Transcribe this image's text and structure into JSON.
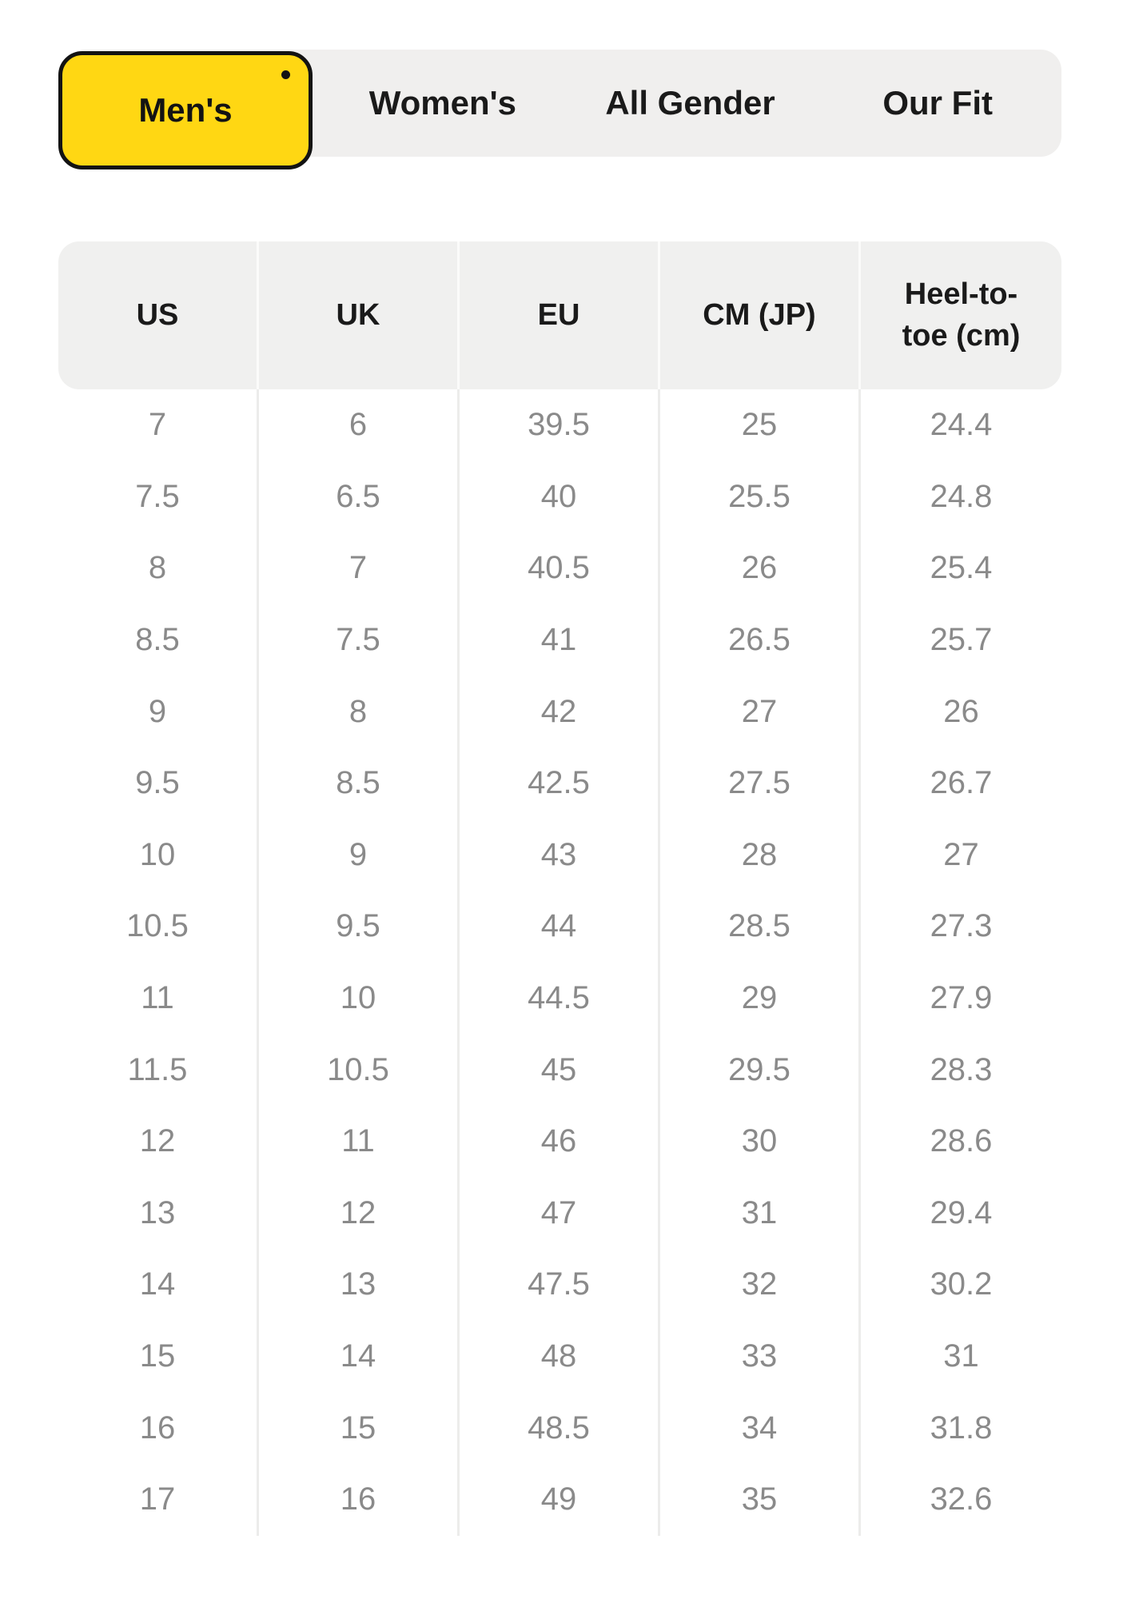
{
  "tabs": {
    "items": [
      {
        "label": "Men's",
        "selected": true
      },
      {
        "label": "Women's",
        "selected": false
      },
      {
        "label": "All Gender",
        "selected": false
      },
      {
        "label": "Our Fit",
        "selected": false
      }
    ]
  },
  "colors": {
    "accent_yellow": "#ffd713",
    "tab_pill_bg": "#f0efee",
    "header_bg": "#f0f0ef",
    "tab_text": "#1a1a1a",
    "body_text": "#8a8a8a",
    "divider": "#ececeb",
    "selected_border": "#131313"
  },
  "table": {
    "columns": [
      "US",
      "UK",
      "EU",
      "CM (JP)",
      "Heel-to-toe (cm)"
    ],
    "rows": [
      [
        "7",
        "6",
        "39.5",
        "25",
        "24.4"
      ],
      [
        "7.5",
        "6.5",
        "40",
        "25.5",
        "24.8"
      ],
      [
        "8",
        "7",
        "40.5",
        "26",
        "25.4"
      ],
      [
        "8.5",
        "7.5",
        "41",
        "26.5",
        "25.7"
      ],
      [
        "9",
        "8",
        "42",
        "27",
        "26"
      ],
      [
        "9.5",
        "8.5",
        "42.5",
        "27.5",
        "26.7"
      ],
      [
        "10",
        "9",
        "43",
        "28",
        "27"
      ],
      [
        "10.5",
        "9.5",
        "44",
        "28.5",
        "27.3"
      ],
      [
        "11",
        "10",
        "44.5",
        "29",
        "27.9"
      ],
      [
        "11.5",
        "10.5",
        "45",
        "29.5",
        "28.3"
      ],
      [
        "12",
        "11",
        "46",
        "30",
        "28.6"
      ],
      [
        "13",
        "12",
        "47",
        "31",
        "29.4"
      ],
      [
        "14",
        "13",
        "47.5",
        "32",
        "30.2"
      ],
      [
        "15",
        "14",
        "48",
        "33",
        "31"
      ],
      [
        "16",
        "15",
        "48.5",
        "34",
        "31.8"
      ],
      [
        "17",
        "16",
        "49",
        "35",
        "32.6"
      ]
    ]
  }
}
